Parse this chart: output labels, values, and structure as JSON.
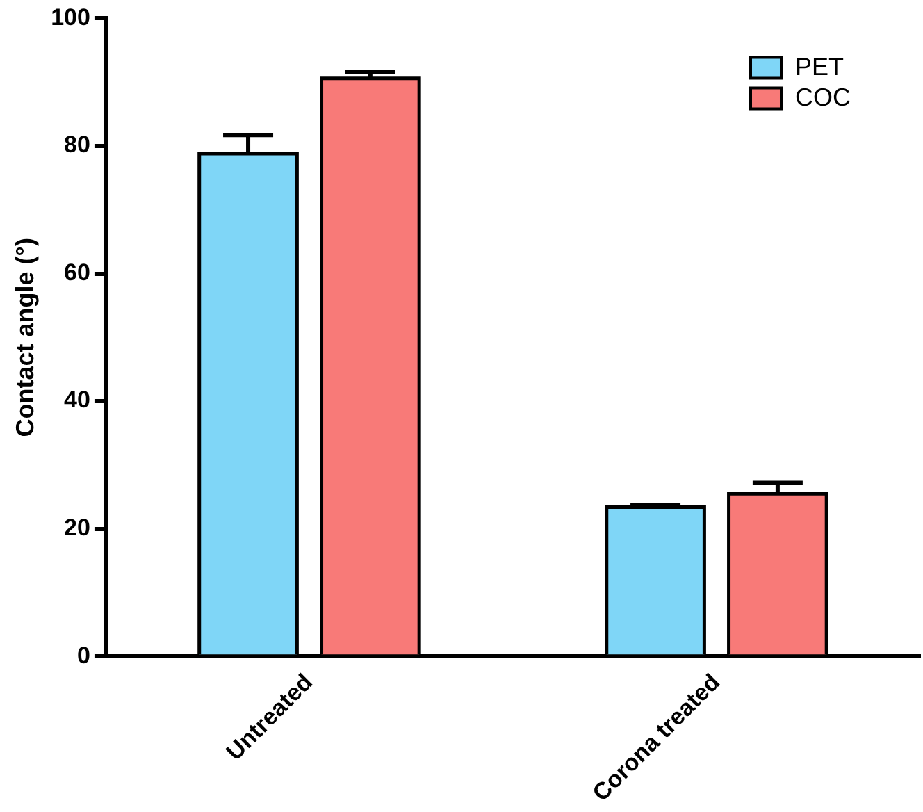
{
  "chart_data": {
    "type": "bar",
    "ylabel": "Contact angle (°)",
    "categories": [
      "Untreated",
      "Corona treated"
    ],
    "series": [
      {
        "name": "PET",
        "color": "#7fd6f7",
        "values": [
          78.8,
          23.4
        ],
        "errors": [
          2.9,
          0.3
        ]
      },
      {
        "name": "COC",
        "color": "#f87a78",
        "values": [
          90.6,
          25.5
        ],
        "errors": [
          1,
          1.7
        ]
      }
    ],
    "ylim": [
      0,
      100
    ],
    "yticks": [
      0,
      20,
      40,
      60,
      80,
      100
    ],
    "grid": false,
    "legend": "top right"
  }
}
